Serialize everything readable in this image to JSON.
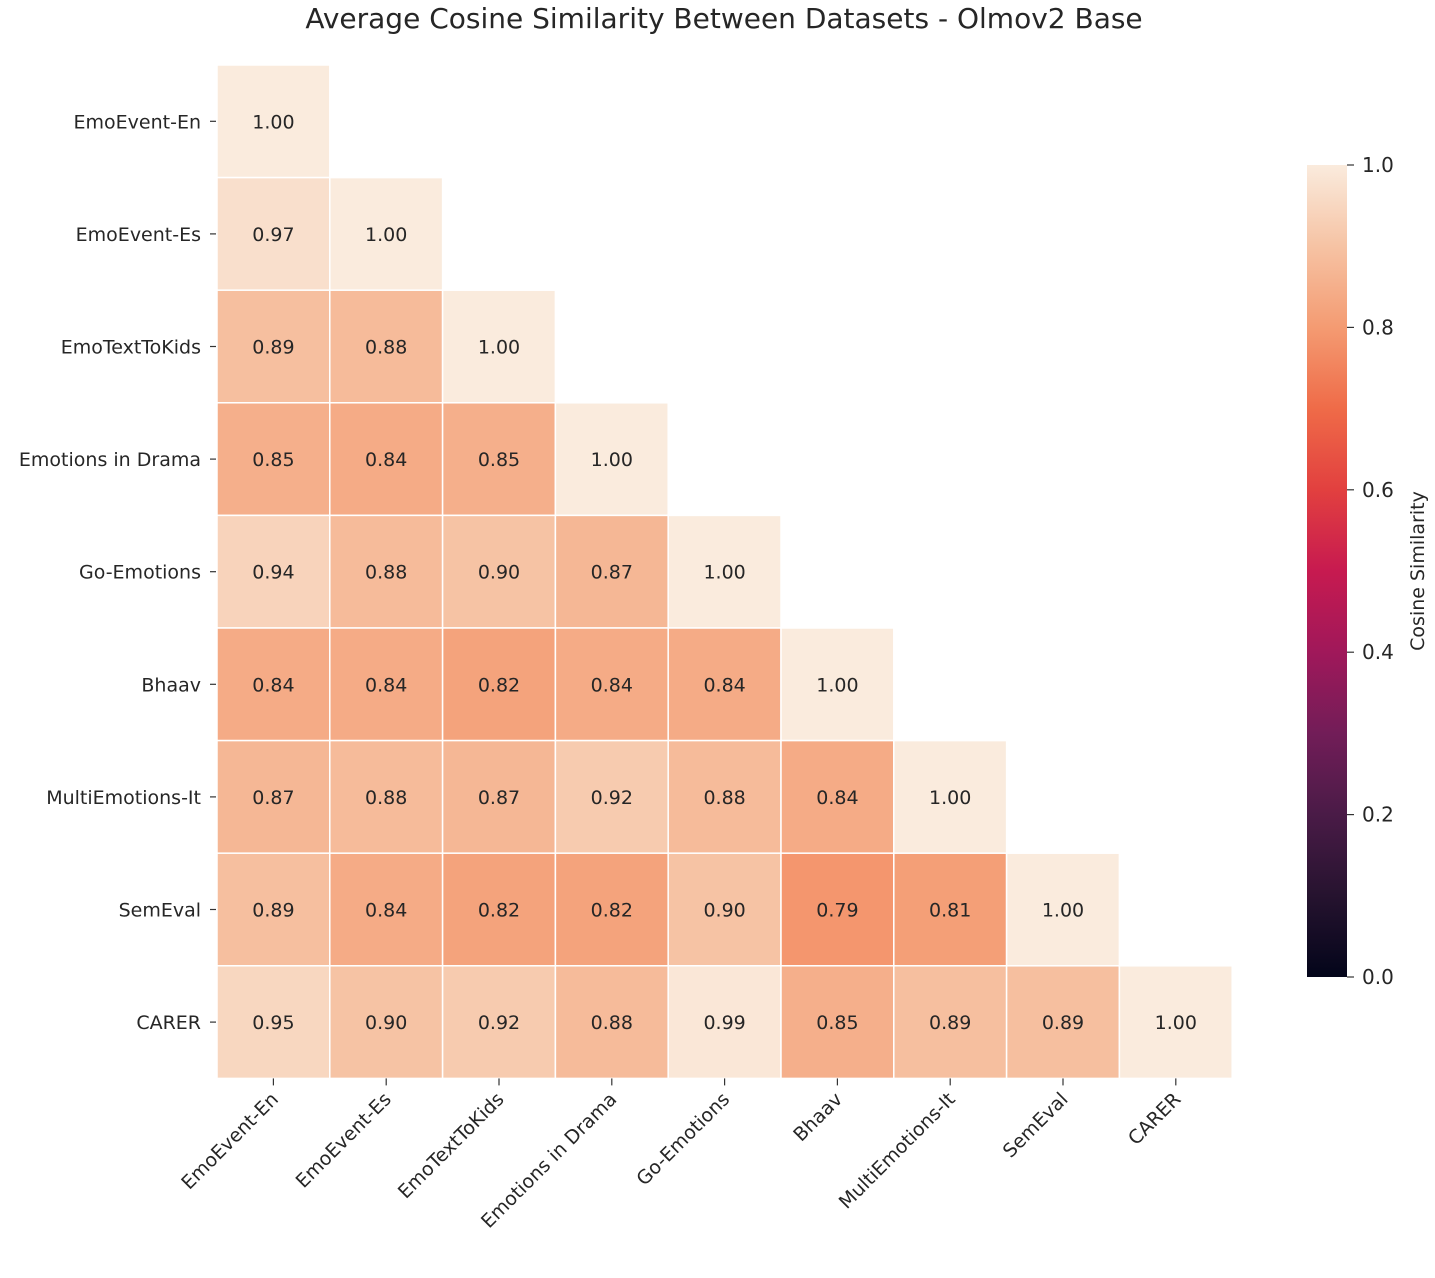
{
  "chart_data": {
    "type": "heatmap",
    "title": "Average Cosine Similarity Between Datasets - Olmov2 Base",
    "labels": [
      "EmoEvent-En",
      "EmoEvent-Es",
      "EmoTextToKids",
      "Emotions in Drama",
      "Go-Emotions",
      "Bhaav",
      "MultiEmotions-It",
      "SemEval",
      "CARER"
    ],
    "matrix": [
      [
        1.0
      ],
      [
        0.97,
        1.0
      ],
      [
        0.89,
        0.88,
        1.0
      ],
      [
        0.85,
        0.84,
        0.85,
        1.0
      ],
      [
        0.94,
        0.88,
        0.9,
        0.87,
        1.0
      ],
      [
        0.84,
        0.84,
        0.82,
        0.84,
        0.84,
        1.0
      ],
      [
        0.87,
        0.88,
        0.87,
        0.92,
        0.88,
        0.84,
        1.0
      ],
      [
        0.89,
        0.84,
        0.82,
        0.82,
        0.9,
        0.79,
        0.81,
        1.0
      ],
      [
        0.95,
        0.9,
        0.92,
        0.88,
        0.99,
        0.85,
        0.89,
        0.89,
        1.0
      ]
    ],
    "mask": "upper-triangle",
    "colorbar": {
      "label": "Cosine Similarity",
      "range": [
        0.0,
        1.0
      ],
      "ticks": [
        "0.0",
        "0.2",
        "0.4",
        "0.6",
        "0.8",
        "1.0"
      ],
      "colormap": "rocket"
    }
  }
}
